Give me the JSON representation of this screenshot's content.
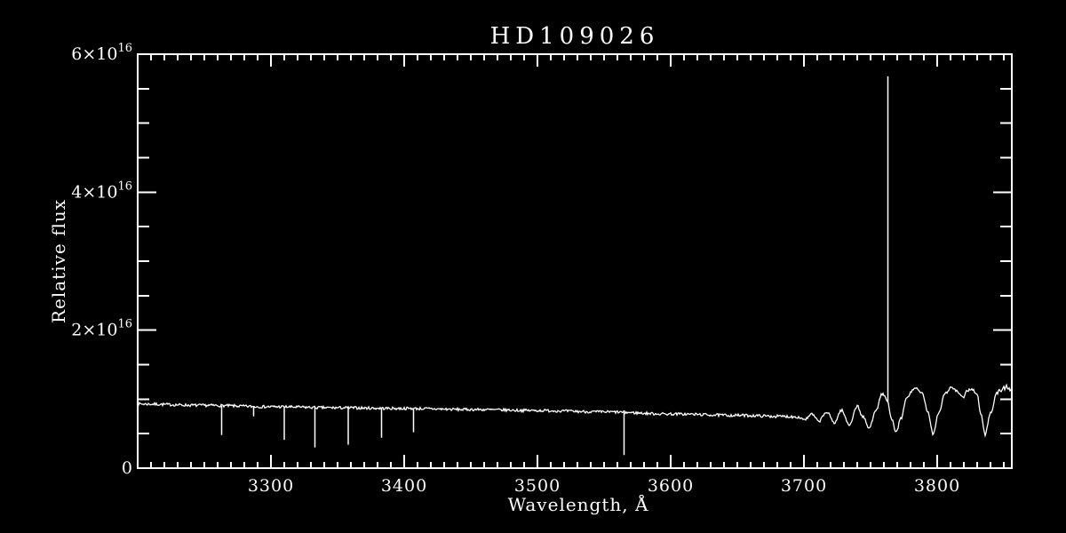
{
  "colors": {
    "background": "#000000",
    "foreground": "#ffffff"
  },
  "chart_data": {
    "type": "line",
    "title": "HD109026",
    "xlabel": "Wavelength, Å",
    "ylabel": "Relative flux",
    "grid": false,
    "legend": null,
    "x_range": [
      3200,
      3856
    ],
    "y_range": [
      0,
      6e+16
    ],
    "flux_unit": "1e16",
    "y_range_1e16": [
      0,
      6
    ],
    "x_ticks": [
      {
        "value": 3300,
        "label": "3300"
      },
      {
        "value": 3400,
        "label": "3400"
      },
      {
        "value": 3500,
        "label": "3500"
      },
      {
        "value": 3600,
        "label": "3600"
      },
      {
        "value": 3700,
        "label": "3700"
      },
      {
        "value": 3800,
        "label": "3800"
      }
    ],
    "x_minor_tick_step": 10,
    "y_ticks": [
      {
        "value": 0,
        "mantissa": "0",
        "exponent": ""
      },
      {
        "value": 2,
        "mantissa": "2×10",
        "exponent": "16"
      },
      {
        "value": 4,
        "mantissa": "4×10",
        "exponent": "16"
      },
      {
        "value": 6,
        "mantissa": "6×10",
        "exponent": "16"
      }
    ],
    "y_minor_tick_step": 0.5,
    "continuum_points_1e16": [
      [
        3200,
        0.93
      ],
      [
        3250,
        0.91
      ],
      [
        3300,
        0.89
      ],
      [
        3350,
        0.875
      ],
      [
        3400,
        0.865
      ],
      [
        3450,
        0.85
      ],
      [
        3500,
        0.835
      ],
      [
        3550,
        0.815
      ],
      [
        3600,
        0.785
      ],
      [
        3650,
        0.765
      ],
      [
        3685,
        0.75
      ],
      [
        3694,
        0.745
      ],
      [
        3701,
        0.71
      ],
      [
        3706,
        0.78
      ],
      [
        3711,
        0.68
      ],
      [
        3717,
        0.81
      ],
      [
        3723,
        0.66
      ],
      [
        3728,
        0.84
      ],
      [
        3734,
        0.63
      ],
      [
        3740,
        0.9
      ],
      [
        3744,
        0.75
      ],
      [
        3749,
        0.58
      ],
      [
        3754,
        0.85
      ],
      [
        3759,
        1.08
      ],
      [
        3762,
        1.0
      ],
      [
        3766,
        0.7
      ],
      [
        3769,
        0.52
      ],
      [
        3773,
        0.72
      ],
      [
        3777,
        1.02
      ],
      [
        3783,
        1.16
      ],
      [
        3789,
        1.08
      ],
      [
        3793,
        0.8
      ],
      [
        3797,
        0.5
      ],
      [
        3801,
        0.8
      ],
      [
        3806,
        1.09
      ],
      [
        3811,
        1.17
      ],
      [
        3815,
        1.11
      ],
      [
        3819,
        1.02
      ],
      [
        3823,
        1.13
      ],
      [
        3826,
        1.15
      ],
      [
        3830,
        1.06
      ],
      [
        3833,
        0.76
      ],
      [
        3836,
        0.49
      ],
      [
        3840,
        0.8
      ],
      [
        3845,
        1.1
      ],
      [
        3851,
        1.17
      ],
      [
        3856,
        1.1
      ]
    ],
    "absorption_lines_1e16": [
      [
        3263,
        0.48
      ],
      [
        3287,
        0.75
      ],
      [
        3310,
        0.41
      ],
      [
        3333,
        0.3
      ],
      [
        3358,
        0.34
      ],
      [
        3383,
        0.44
      ],
      [
        3407,
        0.52
      ],
      [
        3565,
        0.19
      ]
    ],
    "emission_line_1e16": {
      "wavelength": 3763,
      "peak_flux": 5.68
    },
    "noise_amplitude_1e16": 0.02,
    "noise_amplitude_right_edge_1e16": 0.045
  }
}
